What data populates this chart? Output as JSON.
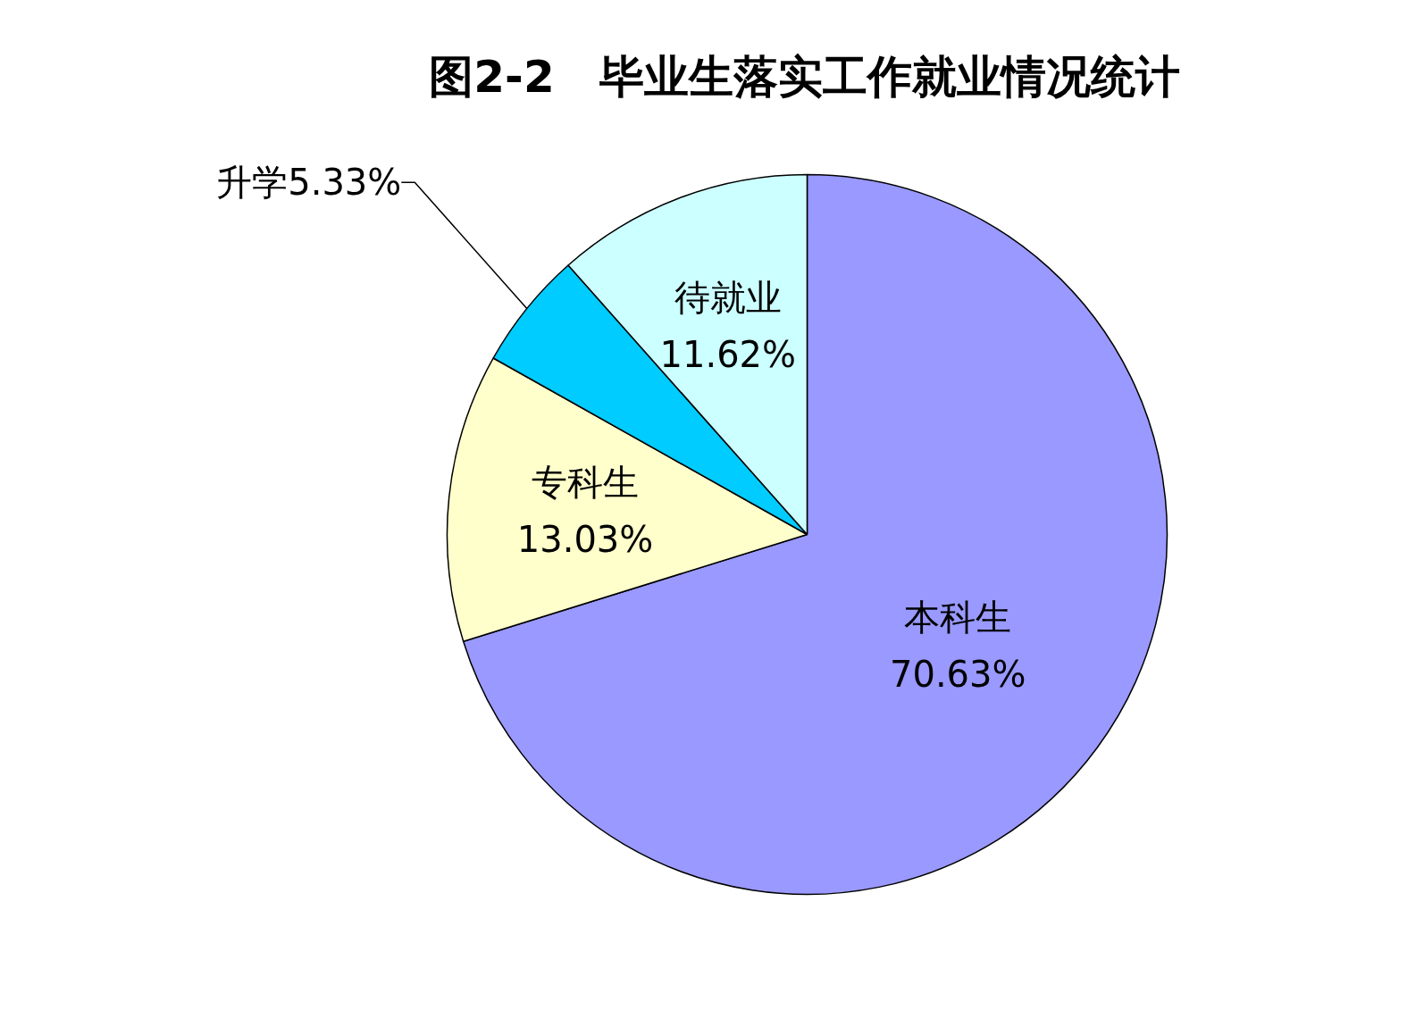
{
  "chart_data": {
    "type": "pie",
    "title": "图2-2　毕业生落实工作就业情况统计",
    "categories": [
      "本科生",
      "专科生",
      "升学",
      "待就业"
    ],
    "values": [
      70.63,
      13.03,
      5.33,
      11.62
    ],
    "value_labels": [
      "70.63%",
      "13.03%",
      "5.33%",
      "11.62%"
    ],
    "colors": [
      "#9999ff",
      "#ffffcc",
      "#00ccff",
      "#ccffff"
    ]
  }
}
